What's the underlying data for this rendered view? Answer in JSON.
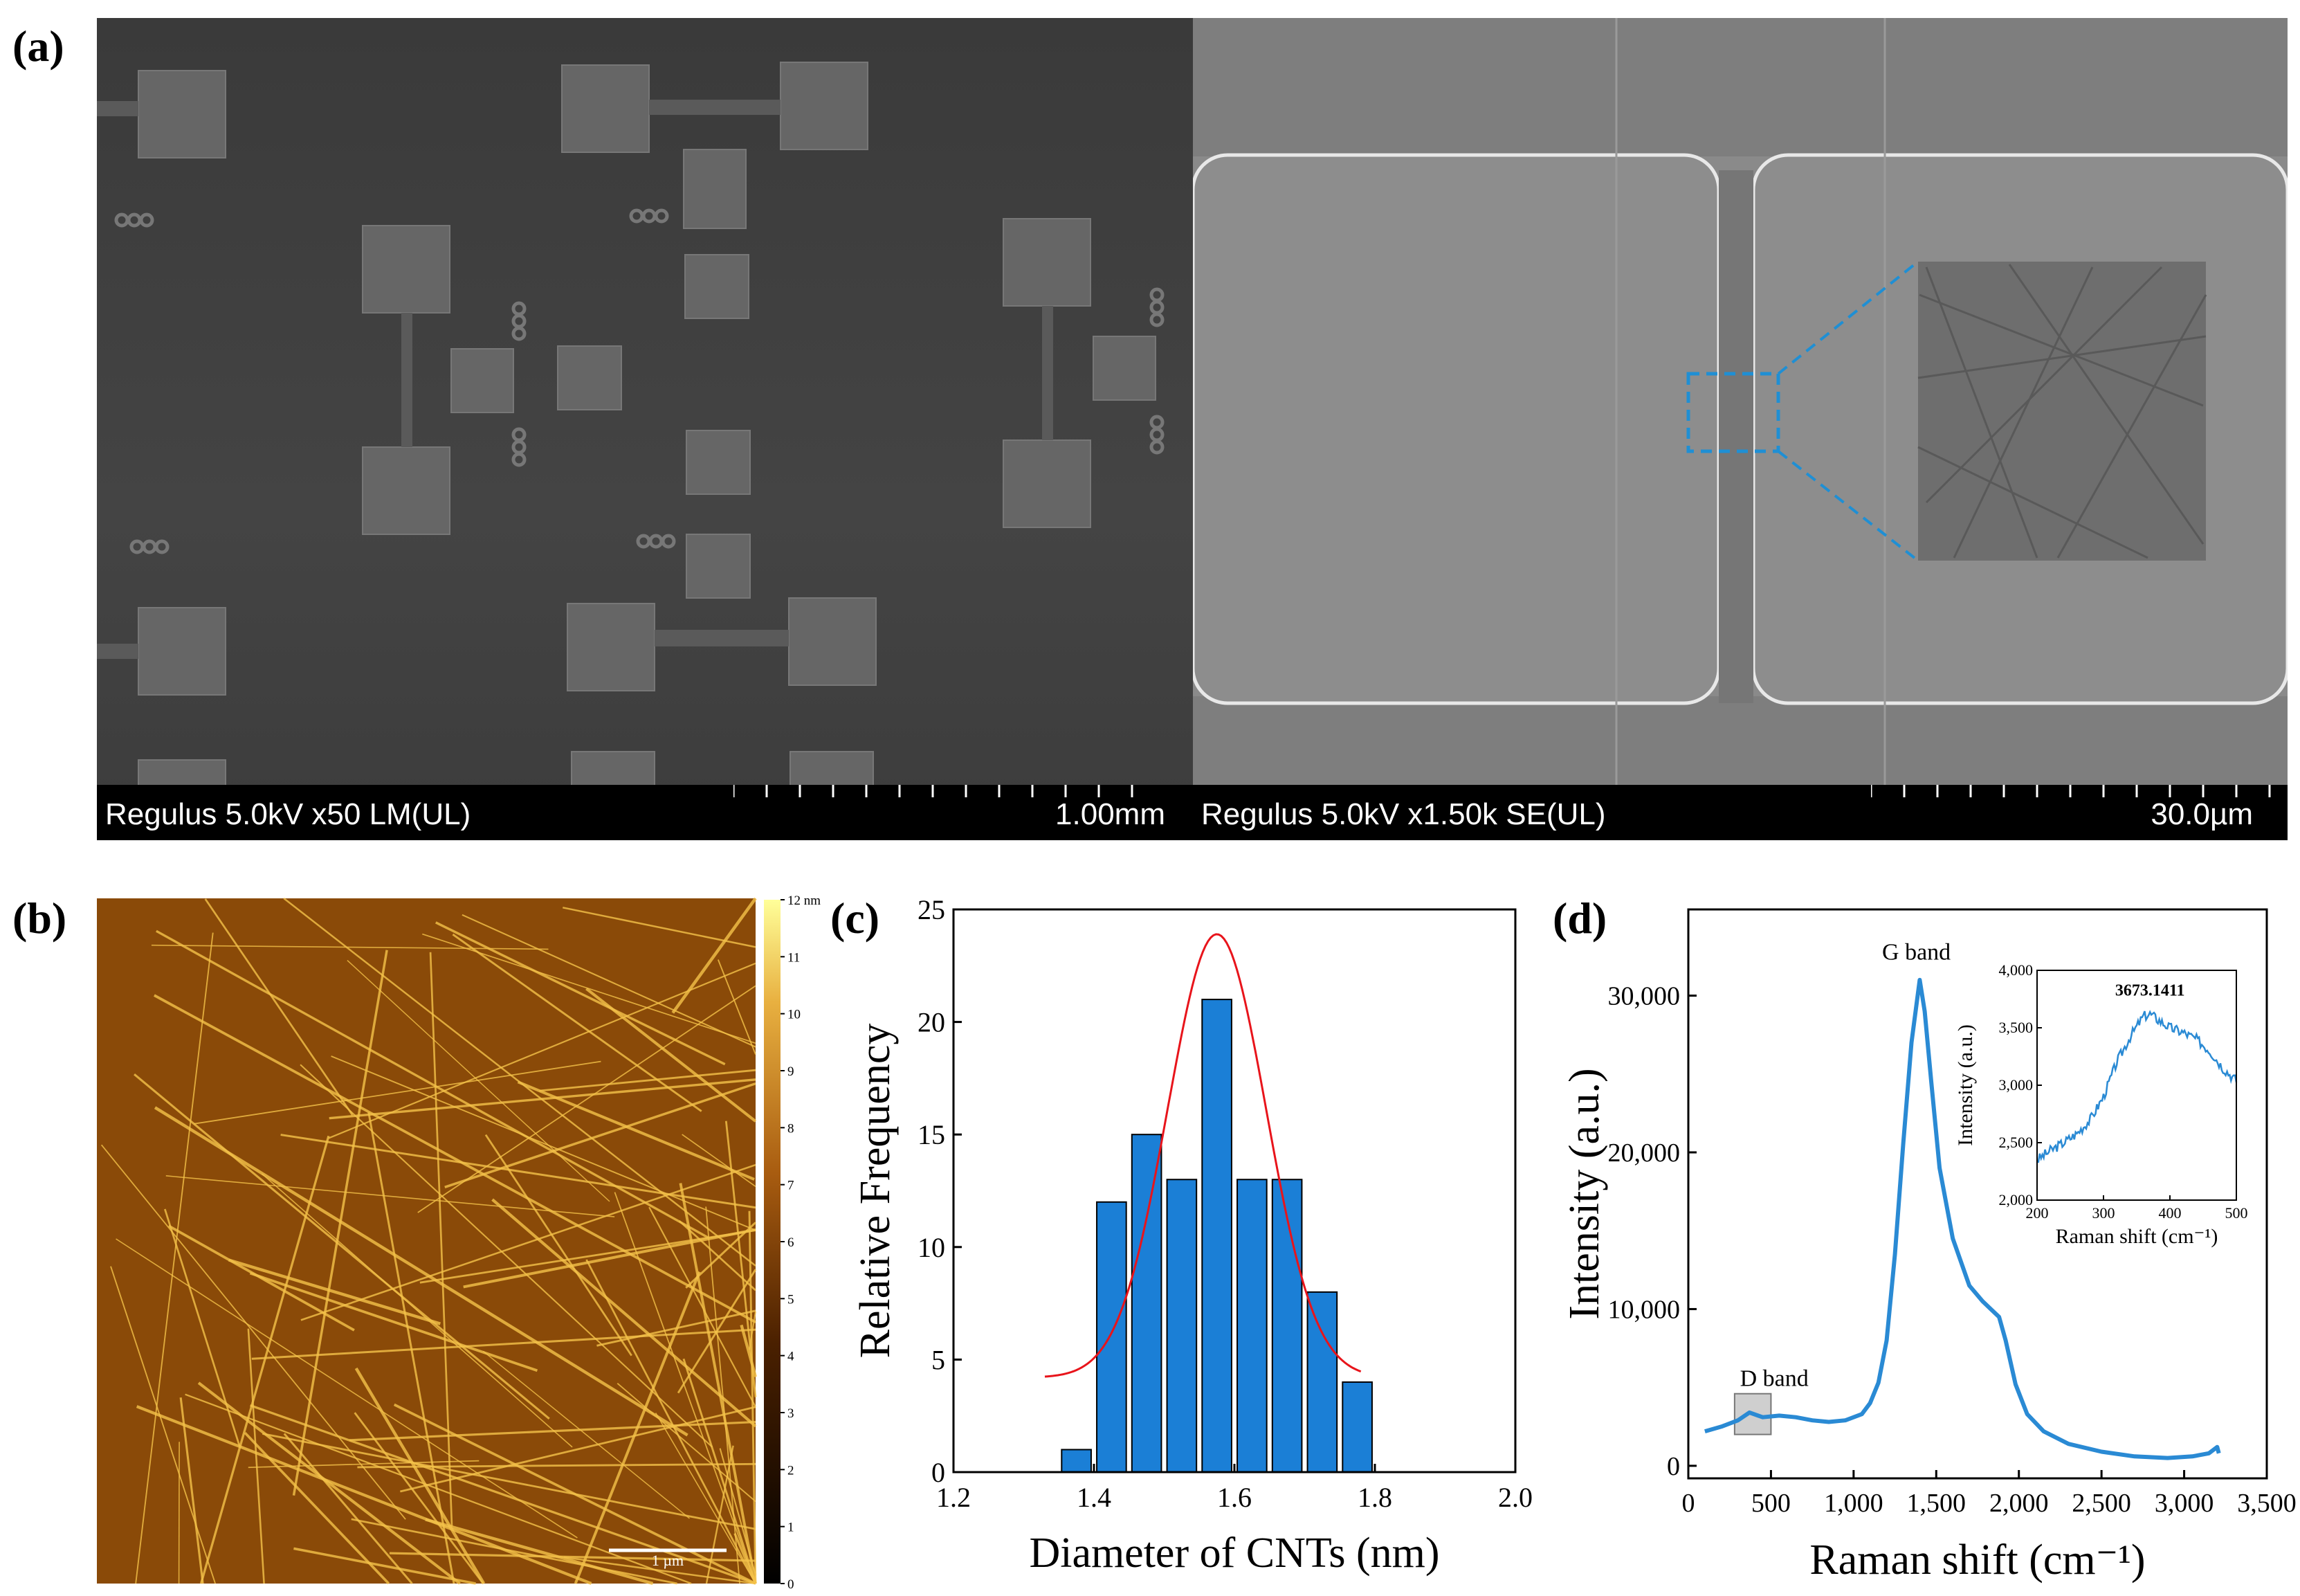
{
  "panels": {
    "a": {
      "label": "(a)"
    },
    "b": {
      "label": "(b)"
    },
    "c": {
      "label": "(c)"
    },
    "d": {
      "label": "(d)"
    }
  },
  "sem_left": {
    "info": "Regulus 5.0kV x50 LM(UL)",
    "scale": "1.00mm"
  },
  "sem_right": {
    "info": "Regulus 5.0kV x1.50k SE(UL)",
    "scale": "30.0µm"
  },
  "afm": {
    "colorbar_ticks": [
      "0",
      "1",
      "2",
      "3",
      "4",
      "5",
      "6",
      "7",
      "8",
      "9",
      "10",
      "11",
      "12 nm"
    ],
    "scalebar_label": "1 µm",
    "colors": {
      "dark": "#1a0800",
      "mid": "#8a4a08",
      "bright": "#ffe56a"
    }
  },
  "chart_data": [
    {
      "id": "c",
      "type": "bar",
      "xlabel": "Diameter of CNTs (nm)",
      "ylabel": "Relative Frequency",
      "xlim": [
        1.2,
        2.0
      ],
      "ylim": [
        0,
        25
      ],
      "xticks": [
        "1.2",
        "1.4",
        "1.6",
        "1.8",
        "2.0"
      ],
      "yticks": [
        "0",
        "5",
        "10",
        "15",
        "20",
        "25"
      ],
      "bin_width": 0.05,
      "series": [
        {
          "name": "Histogram",
          "x": [
            1.375,
            1.425,
            1.475,
            1.525,
            1.575,
            1.625,
            1.675,
            1.725,
            1.775
          ],
          "values": [
            1,
            12,
            15,
            13,
            21,
            13,
            13,
            8,
            4
          ],
          "color": "#1b7fd6"
        },
        {
          "name": "Gaussian fit",
          "type": "line",
          "mean": 1.575,
          "sigma": 0.07,
          "amplitude": 19.7,
          "baseline": 4.2,
          "x_range": [
            1.33,
            1.78
          ],
          "color": "#e8141b"
        }
      ]
    },
    {
      "id": "d",
      "type": "line",
      "xlabel": "Raman shift (cm⁻¹)",
      "ylabel": "Intensity (a.u.)",
      "xlim": [
        0,
        3500
      ],
      "ylim": [
        -800,
        35500
      ],
      "xticks": [
        "0",
        "500",
        "1,000",
        "1,500",
        "2,000",
        "2,500",
        "3,000",
        "3,500"
      ],
      "yticks": [
        "0",
        "10,000",
        "20,000",
        "30,000"
      ],
      "annotations": [
        "G band",
        "D band"
      ],
      "series": [
        {
          "name": "Raman spectrum",
          "color": "#2a8ad4",
          "x": [
            100,
            200,
            300,
            370,
            450,
            550,
            650,
            750,
            850,
            950,
            1050,
            1100,
            1150,
            1200,
            1250,
            1300,
            1350,
            1400,
            1430,
            1470,
            1520,
            1600,
            1700,
            1780,
            1830,
            1880,
            1920,
            1980,
            2050,
            2150,
            2300,
            2500,
            2700,
            2900,
            3050,
            3150,
            3200,
            3210
          ],
          "y": [
            2200,
            2500,
            2900,
            3400,
            3100,
            3200,
            3100,
            2900,
            2800,
            2900,
            3300,
            4000,
            5300,
            8000,
            13500,
            20500,
            27000,
            31000,
            29000,
            24500,
            19000,
            14500,
            11500,
            10500,
            10000,
            9500,
            8000,
            5200,
            3300,
            2200,
            1400,
            900,
            600,
            500,
            600,
            800,
            1200,
            800
          ]
        }
      ]
    },
    {
      "id": "d-inset",
      "type": "line",
      "xlabel": "Raman shift (cm⁻¹)",
      "ylabel": "Intensity (a.u.)",
      "xlim": [
        200,
        500
      ],
      "ylim": [
        2000,
        4000
      ],
      "xticks": [
        "200",
        "300",
        "400",
        "500"
      ],
      "yticks": [
        "2,000",
        "2,500",
        "3,000",
        "3,500",
        "4,000"
      ],
      "peak_label": "3673.1411",
      "series": [
        {
          "name": "Raman inset",
          "color": "#2a8ad4",
          "x": [
            200,
            220,
            240,
            260,
            280,
            300,
            320,
            340,
            360,
            370,
            380,
            400,
            420,
            440,
            460,
            480,
            500
          ],
          "y": [
            2350,
            2430,
            2500,
            2580,
            2700,
            2900,
            3200,
            3420,
            3600,
            3620,
            3580,
            3500,
            3460,
            3400,
            3300,
            3150,
            3040
          ]
        }
      ]
    }
  ]
}
